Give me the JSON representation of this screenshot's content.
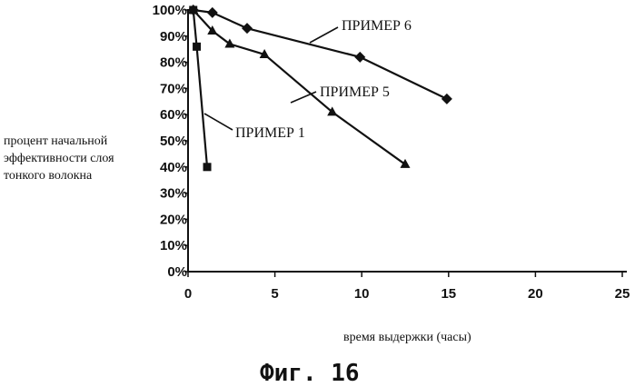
{
  "chart_data": {
    "type": "line",
    "ylabel_lines": [
      "процент начальной",
      "эффективности слоя",
      "тонкого волокна"
    ],
    "xlabel": "время выдержки (часы)",
    "caption": "Фиг. 16",
    "xlim": [
      0,
      25
    ],
    "ylim": [
      0,
      100
    ],
    "x_ticks": [
      0,
      5,
      10,
      15,
      20,
      25
    ],
    "y_ticks": [
      "0%",
      "10%",
      "20%",
      "30%",
      "40%",
      "50%",
      "60%",
      "70%",
      "80%",
      "90%",
      "100%"
    ],
    "grid": false,
    "series": [
      {
        "name": "ПРИМЕР 1",
        "marker": "square",
        "x": [
          0.3,
          0.5,
          1.1
        ],
        "y": [
          100,
          86,
          40
        ]
      },
      {
        "name": "ПРИМЕР 5",
        "marker": "triangle",
        "x": [
          0.3,
          1.4,
          2.4,
          4.4,
          8.3,
          12.5
        ],
        "y": [
          100,
          92,
          87,
          83,
          61,
          41
        ]
      },
      {
        "name": "ПРИМЕР 6",
        "marker": "diamond",
        "x": [
          0.3,
          1.4,
          3.4,
          9.9,
          14.9
        ],
        "y": [
          100,
          99,
          93,
          82,
          66
        ]
      }
    ]
  }
}
